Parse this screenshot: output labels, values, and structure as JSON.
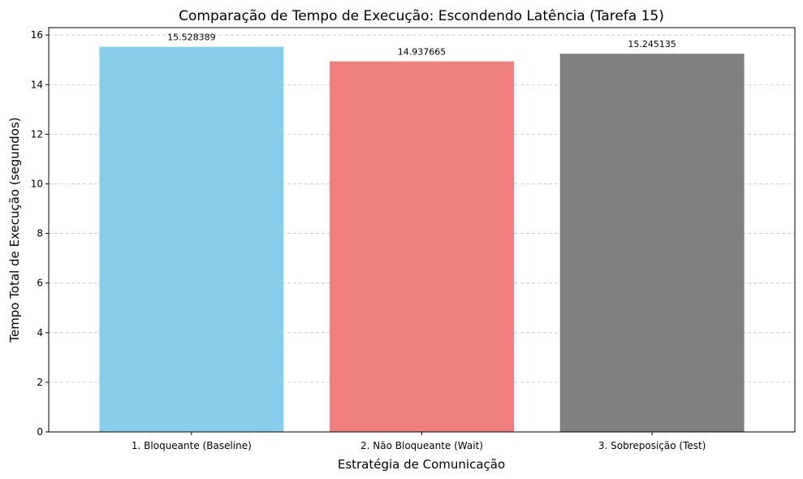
{
  "chart_data": {
    "type": "bar",
    "title": "Comparação de Tempo de Execução: Escondendo Latência (Tarefa 15)",
    "xlabel": "Estratégia de Comunicação",
    "ylabel": "Tempo Total de Execução (segundos)",
    "categories": [
      "1. Bloqueante (Baseline)",
      "2. Não Bloqueante (Wait)",
      "3. Sobreposição (Test)"
    ],
    "values": [
      15.528389,
      14.937665,
      15.245135
    ],
    "value_labels": [
      "15.528389",
      "14.937665",
      "15.245135"
    ],
    "colors": [
      "#87ceeb",
      "#f08080",
      "#808080"
    ],
    "ylim": [
      0,
      16.3
    ],
    "yticks": [
      0,
      2,
      4,
      6,
      8,
      10,
      12,
      14,
      16
    ],
    "grid": "y-dashed"
  }
}
